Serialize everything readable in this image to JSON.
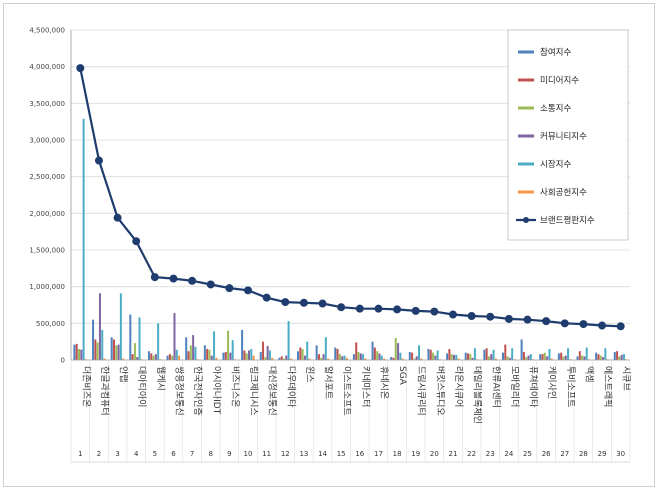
{
  "chart_data": {
    "type": "bar",
    "ylim": [
      0,
      4500000
    ],
    "yticks": [
      0,
      500000,
      1000000,
      1500000,
      2000000,
      2500000,
      3000000,
      3500000,
      4000000,
      4500000
    ],
    "ytick_labels": [
      "0",
      "500,000",
      "1,000,000",
      "1,500,000",
      "2,000,000",
      "2,500,000",
      "3,000,000",
      "3,500,000",
      "4,000,000",
      "4,500,000"
    ],
    "grid": true,
    "legend_position": "top-right",
    "ranks": [
      "1",
      "2",
      "3",
      "4",
      "5",
      "6",
      "7",
      "8",
      "9",
      "10",
      "11",
      "12",
      "13",
      "14",
      "15",
      "16",
      "17",
      "18",
      "19",
      "20",
      "21",
      "22",
      "23",
      "24",
      "25",
      "26",
      "27",
      "28",
      "29",
      "30"
    ],
    "categories": [
      "더존비즈온",
      "한글과컴퓨터",
      "안랩",
      "대아티아이",
      "웹케시",
      "쌍용정보통신",
      "한국전자인증",
      "아시아나IDT",
      "비즈니스온",
      "링크제니시스",
      "대신정보통신",
      "다우데이타",
      "윈스",
      "알서포트",
      "이스트소프트",
      "키네마스터",
      "휴네시온",
      "SGA",
      "드림시큐리티",
      "버킷스튜디오",
      "라온시큐어",
      "데일리블록체인",
      "한류AI센터",
      "모바일리더",
      "퓨쳐데이타",
      "케이사인",
      "투비소프트",
      "액셈",
      "에스트래픽",
      "시큐브"
    ],
    "series": [
      {
        "name": "참여지수",
        "color": "#4f81bd",
        "type": "bar",
        "values": [
          210000,
          550000,
          310000,
          620000,
          120000,
          60000,
          310000,
          200000,
          100000,
          410000,
          110000,
          30000,
          120000,
          200000,
          170000,
          80000,
          250000,
          40000,
          110000,
          150000,
          90000,
          100000,
          140000,
          100000,
          280000,
          80000,
          90000,
          50000,
          100000,
          110000
        ]
      },
      {
        "name": "미디어지수",
        "color": "#c0504d",
        "type": "bar",
        "values": [
          220000,
          280000,
          280000,
          80000,
          90000,
          80000,
          120000,
          150000,
          110000,
          130000,
          250000,
          50000,
          170000,
          80000,
          150000,
          240000,
          170000,
          30000,
          100000,
          140000,
          150000,
          90000,
          160000,
          210000,
          110000,
          80000,
          100000,
          120000,
          80000,
          120000
        ]
      },
      {
        "name": "소통지수",
        "color": "#9bbb59",
        "type": "bar",
        "values": [
          150000,
          240000,
          200000,
          230000,
          60000,
          60000,
          200000,
          140000,
          400000,
          90000,
          40000,
          20000,
          150000,
          30000,
          80000,
          110000,
          120000,
          300000,
          20000,
          100000,
          80000,
          80000,
          50000,
          50000,
          40000,
          100000,
          50000,
          60000,
          60000,
          50000
        ]
      },
      {
        "name": "커뮤니티지수",
        "color": "#8064a2",
        "type": "bar",
        "values": [
          140000,
          910000,
          210000,
          40000,
          80000,
          640000,
          340000,
          60000,
          100000,
          130000,
          190000,
          60000,
          60000,
          80000,
          50000,
          90000,
          90000,
          230000,
          50000,
          60000,
          70000,
          30000,
          80000,
          30000,
          60000,
          50000,
          60000,
          50000,
          40000,
          70000
        ]
      },
      {
        "name": "시장지수",
        "color": "#4bacc6",
        "type": "bar",
        "values": [
          3290000,
          410000,
          910000,
          580000,
          500000,
          140000,
          180000,
          390000,
          270000,
          150000,
          130000,
          530000,
          250000,
          310000,
          60000,
          80000,
          60000,
          100000,
          200000,
          130000,
          70000,
          160000,
          140000,
          160000,
          80000,
          150000,
          160000,
          170000,
          160000,
          80000
        ]
      },
      {
        "name": "사회공헌지수",
        "color": "#f79646",
        "type": "bar",
        "values": [
          10000,
          20000,
          20000,
          10000,
          10000,
          60000,
          10000,
          30000,
          10000,
          60000,
          30000,
          20000,
          20000,
          20000,
          30000,
          20000,
          20000,
          20000,
          20000,
          10000,
          20000,
          10000,
          20000,
          10000,
          10000,
          20000,
          10000,
          10000,
          10000,
          10000
        ]
      },
      {
        "name": "브랜드평판지수",
        "color": "#1f3c6e",
        "type": "line",
        "values": [
          3980000,
          2720000,
          1940000,
          1620000,
          1130000,
          1110000,
          1080000,
          1030000,
          980000,
          950000,
          850000,
          790000,
          780000,
          770000,
          720000,
          700000,
          700000,
          690000,
          670000,
          660000,
          620000,
          600000,
          590000,
          560000,
          550000,
          530000,
          500000,
          490000,
          470000,
          460000
        ]
      }
    ]
  }
}
